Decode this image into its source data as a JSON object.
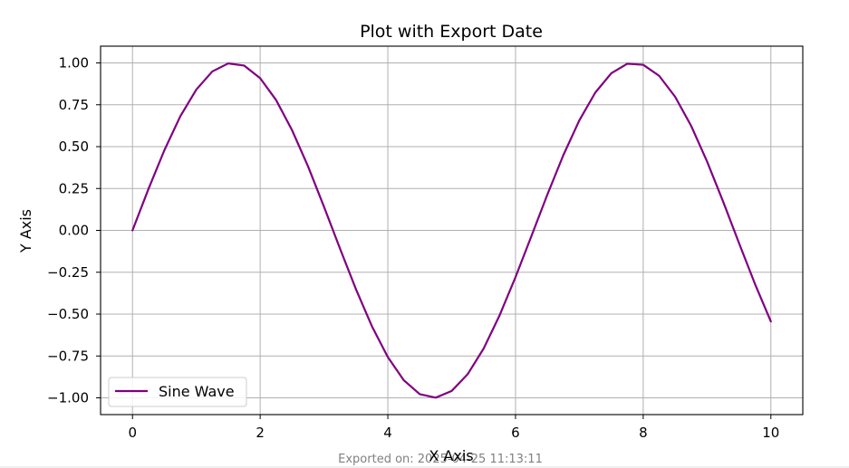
{
  "chart_data": {
    "type": "line",
    "title": "Plot with Export Date",
    "xlabel": "X Axis",
    "ylabel": "Y Axis",
    "xlim": [
      -0.5,
      10.5
    ],
    "ylim": [
      -1.1,
      1.1
    ],
    "xticks": [
      0,
      2,
      4,
      6,
      8,
      10
    ],
    "xtick_labels": [
      "0",
      "2",
      "4",
      "6",
      "8",
      "10"
    ],
    "yticks": [
      1.0,
      0.75,
      0.5,
      0.25,
      0.0,
      -0.25,
      -0.5,
      -0.75,
      -1.0
    ],
    "ytick_labels": [
      "1.00",
      "0.75",
      "0.50",
      "0.25",
      "0.00",
      "−0.25",
      "−0.50",
      "−0.75",
      "−1.00"
    ],
    "grid": true,
    "legend_position": "lower-left",
    "series": [
      {
        "name": "Sine Wave",
        "color": "#800080",
        "x": [
          0,
          0.25,
          0.5,
          0.75,
          1.0,
          1.25,
          1.5,
          1.75,
          2.0,
          2.25,
          2.5,
          2.75,
          3.0,
          3.25,
          3.5,
          3.75,
          4.0,
          4.25,
          4.5,
          4.75,
          5.0,
          5.25,
          5.5,
          5.75,
          6.0,
          6.25,
          6.5,
          6.75,
          7.0,
          7.25,
          7.5,
          7.75,
          8.0,
          8.25,
          8.5,
          8.75,
          9.0,
          9.25,
          9.5,
          9.75,
          10.0
        ],
        "y": [
          0.0,
          0.247,
          0.479,
          0.682,
          0.841,
          0.949,
          0.997,
          0.984,
          0.909,
          0.778,
          0.598,
          0.382,
          0.141,
          -0.108,
          -0.351,
          -0.572,
          -0.757,
          -0.895,
          -0.978,
          -0.999,
          -0.959,
          -0.859,
          -0.706,
          -0.508,
          -0.279,
          -0.033,
          0.215,
          0.45,
          0.657,
          0.823,
          0.938,
          0.995,
          0.989,
          0.923,
          0.798,
          0.625,
          0.412,
          0.174,
          -0.075,
          -0.319,
          -0.544
        ]
      }
    ]
  },
  "footer": {
    "export_text": "Exported on: 2025-04-25 11:13:11"
  }
}
